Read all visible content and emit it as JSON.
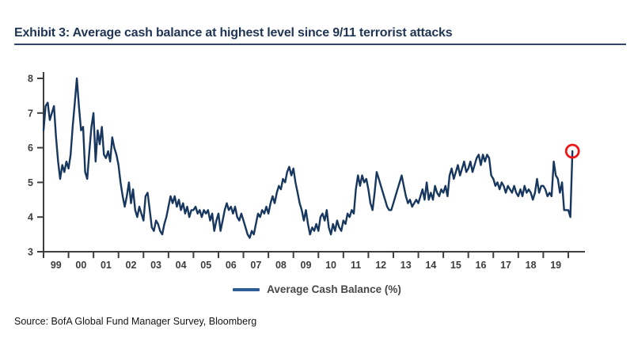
{
  "header": {
    "title": "Exhibit 3: Average cash balance at highest level since 9/11 terrorist attacks"
  },
  "legend": {
    "label": "Average Cash Balance (%)"
  },
  "footer": {
    "source": "Source: BofA Global Fund Manager Survey, Bloomberg"
  },
  "colors": {
    "series_line": "#17375e",
    "legend_swatch": "#2e5c94",
    "highlight_circle": "#ee1717",
    "axis": "#3f3f3f",
    "tick_label": "#3d3d3d",
    "title_text": "#1f3553",
    "title_rule": "#31486e"
  },
  "chart_data": {
    "type": "line",
    "title": "Average cash balance at highest level since 9/11 terrorist attacks",
    "series_name": "Average Cash Balance (%)",
    "frequency": "monthly",
    "x_start_year": 1999,
    "points_per_year": 12,
    "x_tick_labels": [
      "99",
      "00",
      "01",
      "02",
      "03",
      "04",
      "05",
      "06",
      "07",
      "08",
      "09",
      "10",
      "11",
      "12",
      "13",
      "14",
      "15",
      "16",
      "17",
      "18",
      "19"
    ],
    "ylim": [
      3,
      8
    ],
    "yticks": [
      3,
      4,
      5,
      6,
      7,
      8
    ],
    "grid": false,
    "legend_position": "bottom-center",
    "highlight_last_point": true,
    "last_point": {
      "value": 5.9,
      "marker": "red-circle"
    },
    "values": [
      6.5,
      7.2,
      7.3,
      6.8,
      7.0,
      7.2,
      6.3,
      5.6,
      5.1,
      5.5,
      5.3,
      5.6,
      5.4,
      5.8,
      6.6,
      7.3,
      8.0,
      7.2,
      6.5,
      6.6,
      5.3,
      5.1,
      5.9,
      6.6,
      7.0,
      5.6,
      6.5,
      6.1,
      6.6,
      5.8,
      5.7,
      5.9,
      5.6,
      6.3,
      6.0,
      5.8,
      5.5,
      5.0,
      4.6,
      4.3,
      4.6,
      5.0,
      4.4,
      4.8,
      4.2,
      4.0,
      4.3,
      4.1,
      3.9,
      4.6,
      4.7,
      4.2,
      3.7,
      3.6,
      3.9,
      3.8,
      3.6,
      3.5,
      3.8,
      4.0,
      4.3,
      4.6,
      4.4,
      4.6,
      4.3,
      4.5,
      4.2,
      4.4,
      4.1,
      4.3,
      4.0,
      4.2,
      4.2,
      4.3,
      4.1,
      4.2,
      4.0,
      4.2,
      4.1,
      4.2,
      3.9,
      4.1,
      3.6,
      3.9,
      4.1,
      3.6,
      3.9,
      4.2,
      4.4,
      4.2,
      4.3,
      4.1,
      4.3,
      4.0,
      3.9,
      4.1,
      3.9,
      3.7,
      3.5,
      3.4,
      3.6,
      3.5,
      3.8,
      4.1,
      4.0,
      4.2,
      4.1,
      4.3,
      4.1,
      4.4,
      4.6,
      4.4,
      4.7,
      4.9,
      4.8,
      5.1,
      5.0,
      5.3,
      5.45,
      5.2,
      5.4,
      5.0,
      4.7,
      4.4,
      4.2,
      3.9,
      4.2,
      3.8,
      3.5,
      3.7,
      3.6,
      3.8,
      3.6,
      4.0,
      4.1,
      3.9,
      4.2,
      3.7,
      3.5,
      3.8,
      3.6,
      3.9,
      3.7,
      3.6,
      3.9,
      3.8,
      4.1,
      4.0,
      4.2,
      4.1,
      4.8,
      5.2,
      4.9,
      5.2,
      5.0,
      5.1,
      4.8,
      4.4,
      4.2,
      4.7,
      5.3,
      5.1,
      4.9,
      4.7,
      4.5,
      4.3,
      4.2,
      4.2,
      4.4,
      4.6,
      4.8,
      5.0,
      5.2,
      4.9,
      4.6,
      4.4,
      4.5,
      4.3,
      4.4,
      4.5,
      4.4,
      4.6,
      4.8,
      4.5,
      5.0,
      4.5,
      4.7,
      4.5,
      4.9,
      4.7,
      4.6,
      4.8,
      4.7,
      4.9,
      4.6,
      5.2,
      5.4,
      5.1,
      5.3,
      5.5,
      5.2,
      5.4,
      5.6,
      5.3,
      5.4,
      5.6,
      5.3,
      5.5,
      5.7,
      5.8,
      5.5,
      5.8,
      5.6,
      5.8,
      5.7,
      5.2,
      5.1,
      4.9,
      5.0,
      4.8,
      5.0,
      4.9,
      4.7,
      4.9,
      4.8,
      4.7,
      4.9,
      4.7,
      4.6,
      4.8,
      4.6,
      4.9,
      4.7,
      4.8,
      4.7,
      4.5,
      4.7,
      5.1,
      4.7,
      4.9,
      4.9,
      4.8,
      4.6,
      4.7,
      4.6,
      5.6,
      5.2,
      5.1,
      4.7,
      5.0,
      4.2,
      4.2,
      4.2,
      4.0,
      5.9
    ]
  }
}
